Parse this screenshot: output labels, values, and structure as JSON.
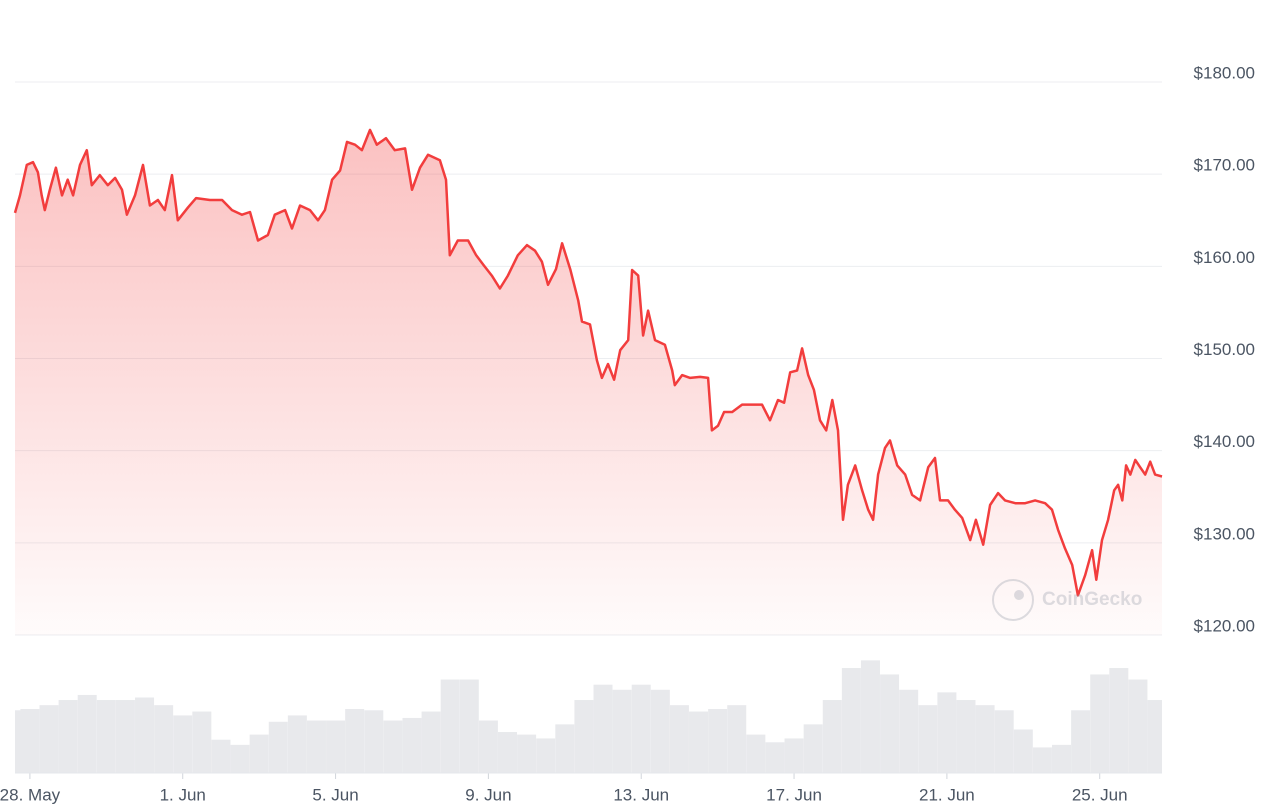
{
  "chart_data": {
    "type": "line",
    "watermark": "CoinGecko",
    "xlim": [
      -0.39,
      29.63
    ],
    "ylim": [
      120,
      180
    ],
    "y2lim": [
      0,
      100
    ],
    "grid": true,
    "xticks": [
      {
        "value": 0,
        "label": "28. May"
      },
      {
        "value": 4,
        "label": "1. Jun"
      },
      {
        "value": 8,
        "label": "5. Jun"
      },
      {
        "value": 12,
        "label": "9. Jun"
      },
      {
        "value": 16,
        "label": "13. Jun"
      },
      {
        "value": 20,
        "label": "17. Jun"
      },
      {
        "value": 24,
        "label": "21. Jun"
      },
      {
        "value": 28,
        "label": "25. Jun"
      }
    ],
    "yticks": [
      {
        "value": 120,
        "label": "$120.00"
      },
      {
        "value": 130,
        "label": "$130.00"
      },
      {
        "value": 140,
        "label": "$140.00"
      },
      {
        "value": 150,
        "label": "$150.00"
      },
      {
        "value": 160,
        "label": "$160.00"
      },
      {
        "value": 170,
        "label": "$170.00"
      },
      {
        "value": 180,
        "label": "$180.00"
      }
    ],
    "series": [
      {
        "color": "#f23d3d",
        "x": [
          -0.39,
          -0.26,
          -0.08,
          0.08,
          0.21,
          0.31,
          0.39,
          0.52,
          0.68,
          0.84,
          0.99,
          1.13,
          1.31,
          1.49,
          1.62,
          1.83,
          2.04,
          2.23,
          2.41,
          2.54,
          2.75,
          2.96,
          3.14,
          3.35,
          3.53,
          3.72,
          3.87,
          4.14,
          4.35,
          4.71,
          5.03,
          5.29,
          5.55,
          5.76,
          5.97,
          6.23,
          6.41,
          6.68,
          6.86,
          7.07,
          7.33,
          7.54,
          7.72,
          7.91,
          8.12,
          8.3,
          8.51,
          8.69,
          8.9,
          9.08,
          9.32,
          9.55,
          9.82,
          10.0,
          10.21,
          10.42,
          10.73,
          10.89,
          10.99,
          11.2,
          11.47,
          11.68,
          11.88,
          12.09,
          12.3,
          12.51,
          12.77,
          13.01,
          13.22,
          13.4,
          13.56,
          13.77,
          13.93,
          14.14,
          14.35,
          14.45,
          14.66,
          14.84,
          14.97,
          15.13,
          15.29,
          15.45,
          15.66,
          15.76,
          15.92,
          16.05,
          16.18,
          16.36,
          16.62,
          16.81,
          16.88,
          17.07,
          17.28,
          17.54,
          17.75,
          17.85,
          18.01,
          18.17,
          18.38,
          18.64,
          18.9,
          19.16,
          19.37,
          19.58,
          19.74,
          19.9,
          20.08,
          20.21,
          20.37,
          20.52,
          20.68,
          20.84,
          21.0,
          21.15,
          21.28,
          21.41,
          21.6,
          21.78,
          21.94,
          22.07,
          22.2,
          22.38,
          22.51,
          22.7,
          22.91,
          23.09,
          23.3,
          23.51,
          23.69,
          23.82,
          24.03,
          24.21,
          24.4,
          24.61,
          24.76,
          24.95,
          25.13,
          25.34,
          25.52,
          25.79,
          26.05,
          26.31,
          26.57,
          26.75,
          26.91,
          27.09,
          27.28,
          27.43,
          27.62,
          27.8,
          27.91,
          28.06,
          28.22,
          28.38,
          28.48,
          28.59,
          28.69,
          28.8,
          28.93,
          29.06,
          29.19,
          29.32,
          29.45,
          29.63
        ],
        "values": [
          165.8,
          167.7,
          171,
          171.3,
          170.2,
          167.7,
          166.1,
          168.3,
          170.7,
          167.7,
          169.4,
          167.7,
          171,
          172.6,
          168.8,
          169.9,
          168.8,
          169.6,
          168.3,
          165.6,
          167.7,
          171,
          166.6,
          167.2,
          166.1,
          169.9,
          165,
          166.4,
          167.4,
          167.2,
          167.2,
          166.1,
          165.6,
          165.9,
          162.8,
          163.4,
          165.6,
          166.1,
          164.1,
          166.6,
          166.1,
          165,
          166.1,
          169.4,
          170.4,
          173.5,
          173.2,
          172.6,
          174.8,
          173.2,
          173.9,
          172.6,
          172.8,
          168.3,
          170.7,
          172.1,
          171.5,
          169.4,
          161.2,
          162.8,
          162.8,
          161.2,
          160.1,
          159,
          157.6,
          159,
          161.2,
          162.3,
          161.7,
          160.5,
          158,
          159.7,
          162.5,
          159.7,
          156.3,
          154,
          153.7,
          149.8,
          147.9,
          149.4,
          147.7,
          150.9,
          152,
          159.6,
          159,
          152.5,
          155.2,
          152,
          151.5,
          148.7,
          147.1,
          148.2,
          147.9,
          148,
          147.9,
          142.2,
          142.7,
          144.2,
          144.2,
          145,
          145,
          145,
          143.3,
          145.5,
          145.2,
          148.5,
          148.7,
          151.1,
          148.2,
          146.6,
          143.3,
          142.2,
          145.5,
          142.2,
          132.5,
          136.3,
          138.4,
          135.7,
          133.6,
          132.5,
          137.4,
          140.3,
          141.1,
          138.4,
          137.4,
          135.2,
          134.6,
          138.2,
          139.2,
          134.6,
          134.6,
          133.6,
          132.7,
          130.3,
          132.5,
          129.8,
          134.1,
          135.4,
          134.6,
          134.3,
          134.3,
          134.6,
          134.3,
          133.6,
          131.4,
          129.4,
          127.6,
          124.3,
          126.5,
          129.2,
          126,
          130.3,
          132.5,
          135.7,
          136.3,
          134.6,
          138.4,
          137.4,
          139,
          138.2,
          137.4,
          138.8,
          137.4,
          137.2
        ]
      }
    ],
    "volume": {
      "axis": "y2",
      "color": "#e8e9ec",
      "x": [
        -0.25,
        0,
        0.5,
        1,
        1.5,
        2,
        2.5,
        3,
        3.5,
        4,
        4.5,
        5,
        5.5,
        6,
        6.5,
        7,
        7.5,
        8,
        8.5,
        9,
        9.5,
        10,
        10.5,
        11,
        11.5,
        12,
        12.5,
        13,
        13.5,
        14,
        14.5,
        15,
        15.5,
        16,
        16.5,
        17,
        17.5,
        18,
        18.5,
        19,
        19.5,
        20,
        20.5,
        21,
        21.5,
        22,
        22.5,
        23,
        23.5,
        24,
        24.5,
        25,
        25.5,
        26,
        26.5,
        27,
        27.5,
        28,
        28.5,
        29,
        29.5
      ],
      "values": [
        49,
        50,
        53,
        57,
        61,
        57,
        57,
        59,
        53,
        45,
        48,
        26,
        22,
        30,
        40,
        45,
        41,
        41,
        50,
        49,
        41,
        43,
        48,
        73,
        73,
        41,
        32,
        30,
        27,
        38,
        57,
        69,
        65,
        69,
        65,
        53,
        48,
        50,
        53,
        30,
        24,
        27,
        38,
        57,
        82,
        88,
        77,
        65,
        53,
        63,
        57,
        53,
        49,
        34,
        20,
        22,
        49,
        77,
        82,
        73,
        57
      ]
    }
  }
}
